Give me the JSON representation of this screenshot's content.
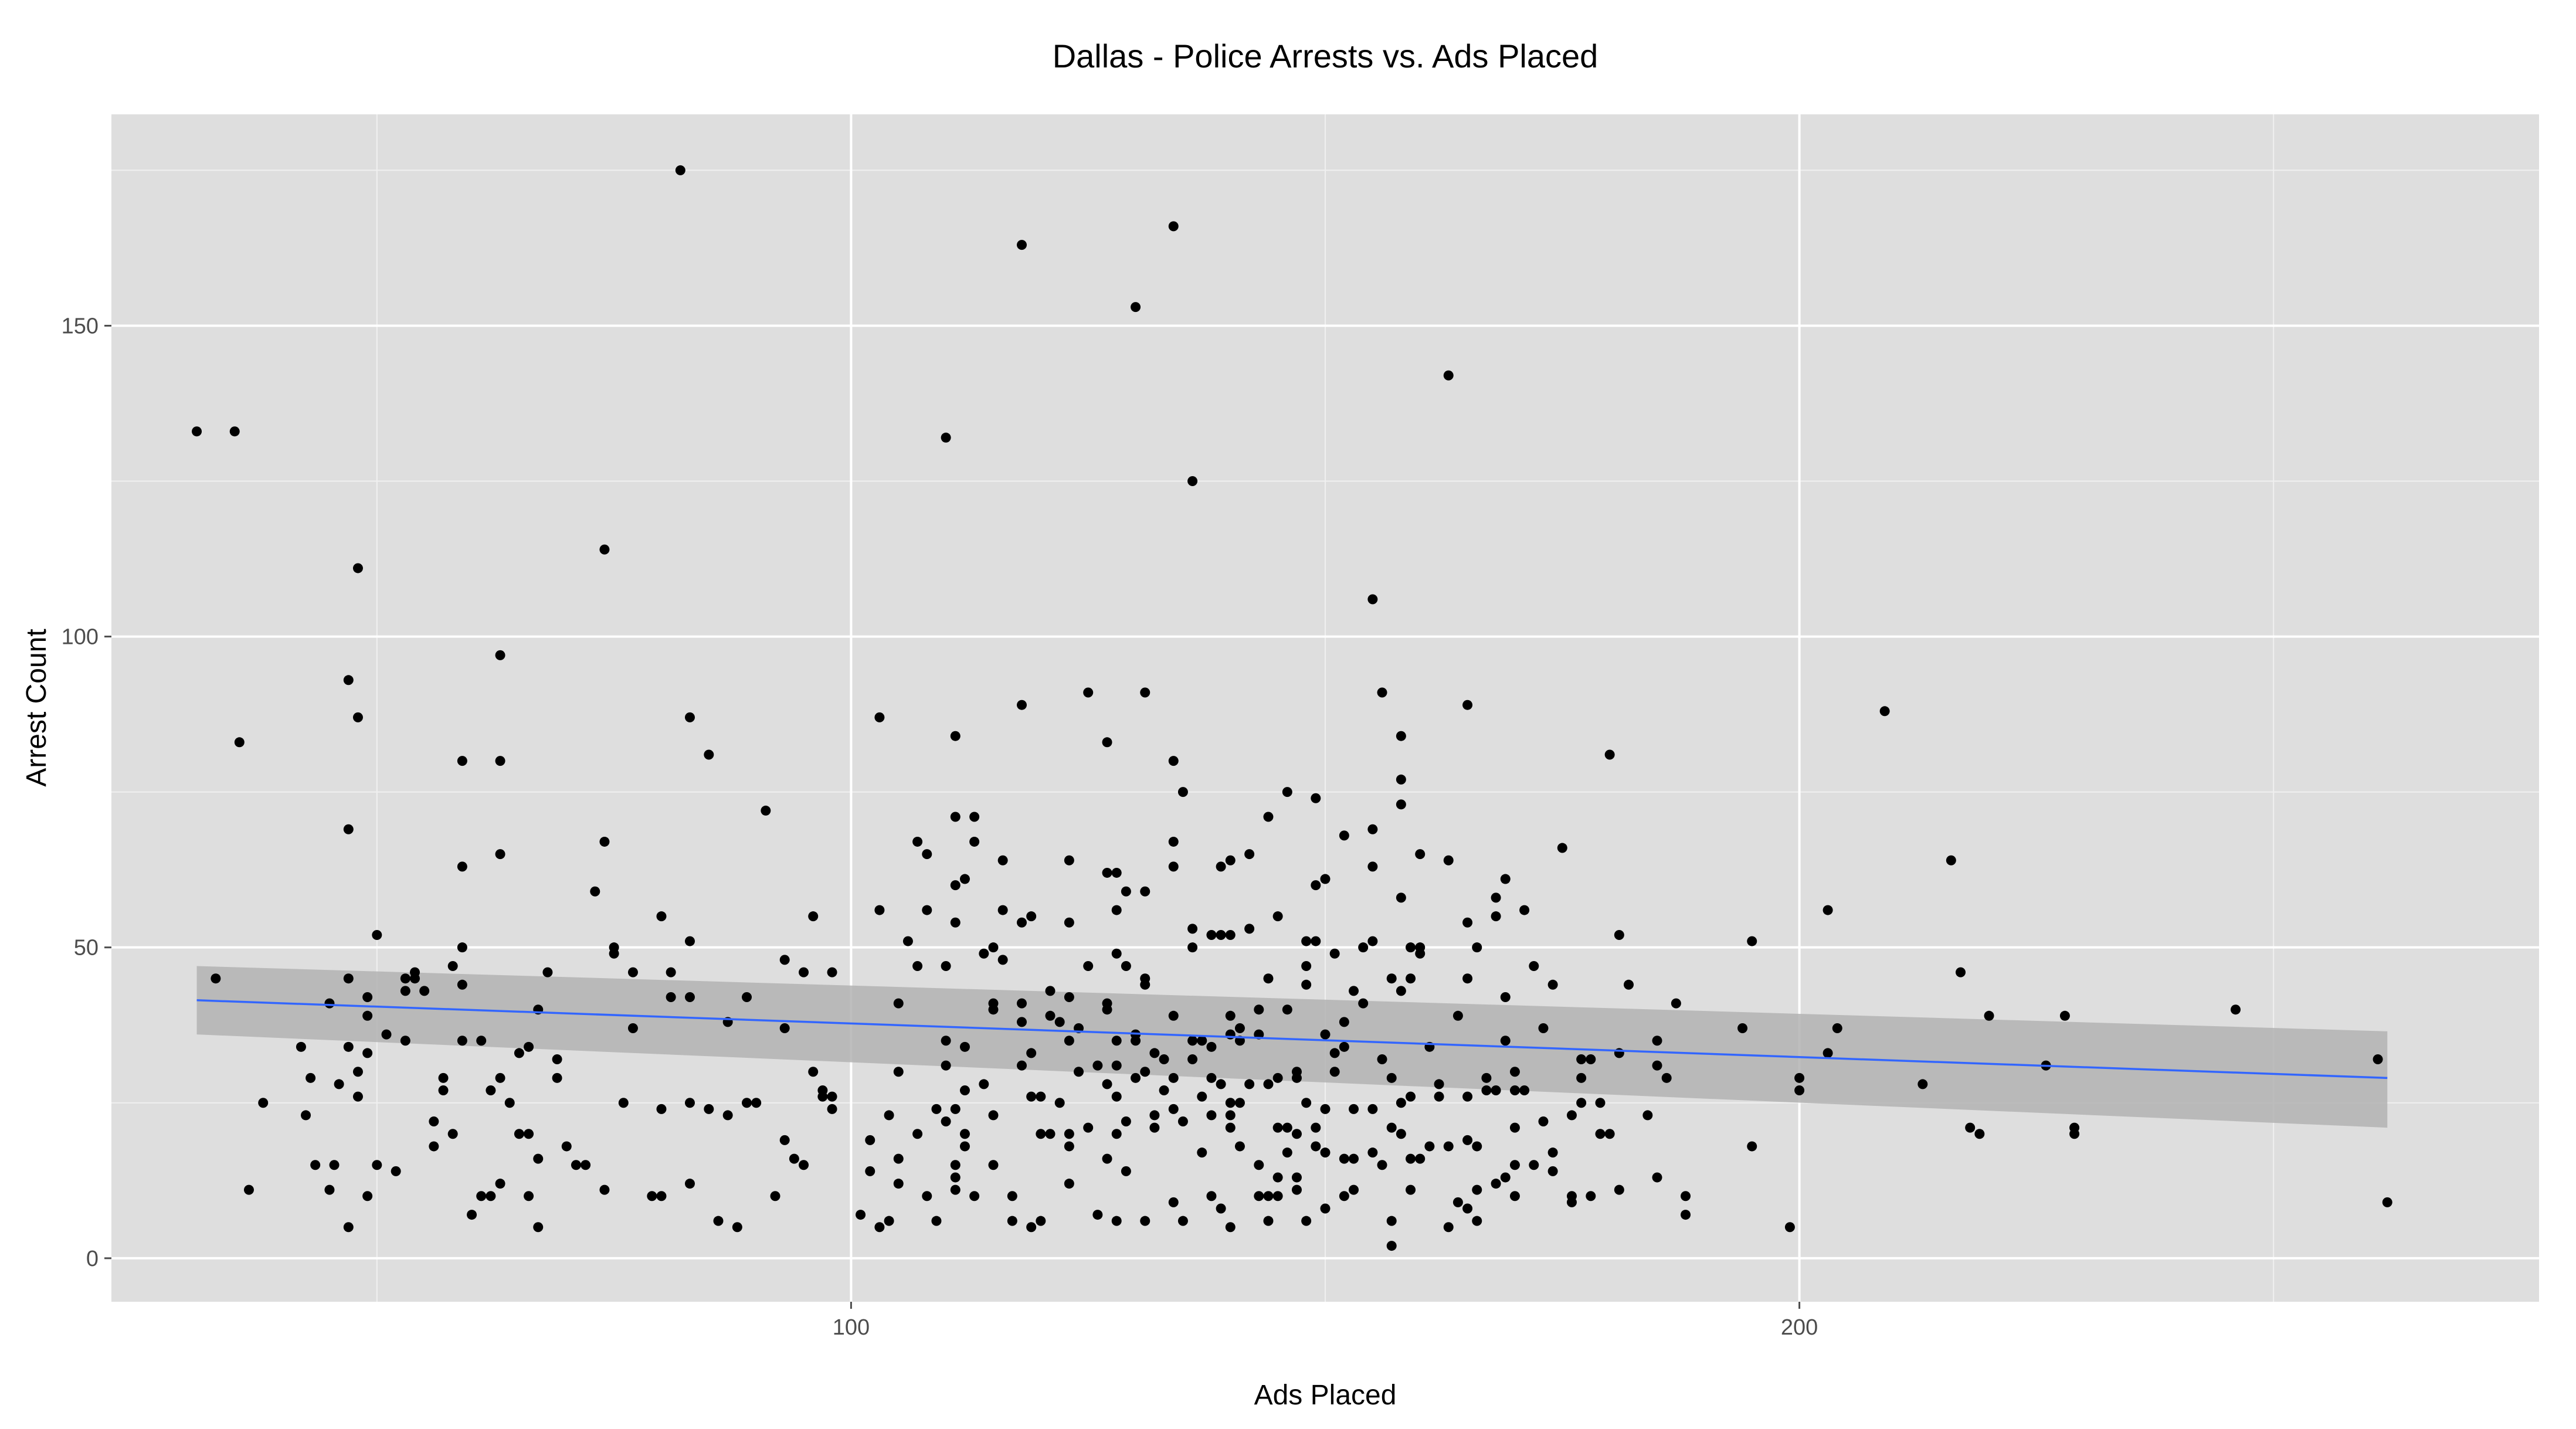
{
  "chart_data": {
    "type": "scatter",
    "title": "Dallas - Police Arrests vs. Ads Placed",
    "xlabel": "Ads Placed",
    "ylabel": "Arrest Count",
    "xlim": [
      22,
      278
    ],
    "ylim": [
      -7,
      184
    ],
    "x_ticks": [
      100,
      200
    ],
    "x_minor_ticks": [
      50,
      150,
      250
    ],
    "y_ticks": [
      0,
      50,
      100,
      150
    ],
    "y_minor_ticks": [
      25,
      75,
      125,
      175
    ],
    "grid": true,
    "legend": "none",
    "colors": {
      "panel": "#dedede",
      "grid_major": "#ffffff",
      "point": "#000000",
      "trend_line": "#3366ff",
      "confidence_band": "#b3b3b3"
    },
    "trend": {
      "x": [
        31,
        262
      ],
      "y": [
        41.5,
        29
      ],
      "band_lower": [
        36,
        21
      ],
      "band_upper": [
        47,
        36.5
      ]
    },
    "points": [
      [
        31,
        133
      ],
      [
        33,
        45
      ],
      [
        35,
        133
      ],
      [
        35.5,
        83
      ],
      [
        36.5,
        11
      ],
      [
        38,
        25
      ],
      [
        42,
        34
      ],
      [
        42.5,
        23
      ],
      [
        43,
        29
      ],
      [
        43.5,
        15
      ],
      [
        45,
        41
      ],
      [
        45.5,
        15
      ],
      [
        45,
        11
      ],
      [
        46,
        28
      ],
      [
        47,
        45
      ],
      [
        47,
        34
      ],
      [
        47,
        69
      ],
      [
        47,
        93
      ],
      [
        47,
        5
      ],
      [
        48,
        87
      ],
      [
        48,
        111
      ],
      [
        48,
        26
      ],
      [
        48,
        30
      ],
      [
        49,
        10
      ],
      [
        49,
        39
      ],
      [
        49,
        33
      ],
      [
        49,
        42
      ],
      [
        50,
        52
      ],
      [
        50,
        15
      ],
      [
        51,
        36
      ],
      [
        52,
        14
      ],
      [
        53,
        35
      ],
      [
        53,
        45
      ],
      [
        53,
        43
      ],
      [
        54,
        45
      ],
      [
        54,
        46
      ],
      [
        55,
        43
      ],
      [
        56,
        22
      ],
      [
        56,
        18
      ],
      [
        57,
        27
      ],
      [
        57,
        29
      ],
      [
        58,
        20
      ],
      [
        58,
        47
      ],
      [
        59,
        35
      ],
      [
        59,
        44
      ],
      [
        59,
        50
      ],
      [
        59,
        80
      ],
      [
        59,
        63
      ],
      [
        60,
        7
      ],
      [
        61,
        35
      ],
      [
        61,
        10
      ],
      [
        62,
        10
      ],
      [
        62,
        27
      ],
      [
        63,
        97
      ],
      [
        63,
        80
      ],
      [
        63,
        65
      ],
      [
        63,
        12
      ],
      [
        63,
        29
      ],
      [
        64,
        25
      ],
      [
        65,
        33
      ],
      [
        65,
        20
      ],
      [
        66,
        34
      ],
      [
        66,
        10
      ],
      [
        66,
        20
      ],
      [
        67,
        5
      ],
      [
        67,
        16
      ],
      [
        67,
        40
      ],
      [
        68,
        46
      ],
      [
        69,
        32
      ],
      [
        69,
        29
      ],
      [
        70,
        18
      ],
      [
        71,
        15
      ],
      [
        72,
        15
      ],
      [
        73,
        59
      ],
      [
        74,
        114
      ],
      [
        74,
        67
      ],
      [
        74,
        11
      ],
      [
        75,
        50
      ],
      [
        75,
        49
      ],
      [
        76,
        25
      ],
      [
        77,
        46
      ],
      [
        77,
        37
      ],
      [
        79,
        10
      ],
      [
        80,
        10
      ],
      [
        80,
        55
      ],
      [
        80,
        24
      ],
      [
        81,
        42
      ],
      [
        81,
        46
      ],
      [
        82,
        175
      ],
      [
        83,
        87
      ],
      [
        83,
        51
      ],
      [
        83,
        42
      ],
      [
        83,
        25
      ],
      [
        83,
        12
      ],
      [
        85,
        81
      ],
      [
        85,
        24
      ],
      [
        86,
        6
      ],
      [
        87,
        23
      ],
      [
        87,
        38
      ],
      [
        88,
        5
      ],
      [
        89,
        42
      ],
      [
        89,
        25
      ],
      [
        90,
        25
      ],
      [
        91,
        72
      ],
      [
        92,
        10
      ],
      [
        93,
        48
      ],
      [
        93,
        37
      ],
      [
        93,
        19
      ],
      [
        94,
        16
      ],
      [
        95,
        46
      ],
      [
        95,
        15
      ],
      [
        96,
        30
      ],
      [
        96,
        55
      ],
      [
        97,
        27
      ],
      [
        97,
        26
      ],
      [
        98,
        46
      ],
      [
        98,
        26
      ],
      [
        98,
        24
      ],
      [
        101,
        7
      ],
      [
        102,
        19
      ],
      [
        102,
        14
      ],
      [
        103,
        56
      ],
      [
        103,
        87
      ],
      [
        103,
        5
      ],
      [
        104,
        6
      ],
      [
        104,
        23
      ],
      [
        105,
        41
      ],
      [
        105,
        30
      ],
      [
        105,
        16
      ],
      [
        105,
        12
      ],
      [
        106,
        51
      ],
      [
        107,
        47
      ],
      [
        107,
        20
      ],
      [
        107,
        67
      ],
      [
        108,
        65
      ],
      [
        108,
        56
      ],
      [
        108,
        10
      ],
      [
        109,
        6
      ],
      [
        109,
        24
      ],
      [
        110,
        35
      ],
      [
        110,
        47
      ],
      [
        110,
        31
      ],
      [
        110,
        22
      ],
      [
        110,
        132
      ],
      [
        111,
        84
      ],
      [
        111,
        71
      ],
      [
        111,
        60
      ],
      [
        111,
        54
      ],
      [
        111,
        15
      ],
      [
        111,
        13
      ],
      [
        111,
        11
      ],
      [
        111,
        24
      ],
      [
        112,
        61
      ],
      [
        112,
        34
      ],
      [
        112,
        27
      ],
      [
        112,
        20
      ],
      [
        112,
        18
      ],
      [
        113,
        71
      ],
      [
        113,
        67
      ],
      [
        113,
        10
      ],
      [
        114,
        49
      ],
      [
        114,
        28
      ],
      [
        115,
        50
      ],
      [
        115,
        41
      ],
      [
        115,
        40
      ],
      [
        115,
        15
      ],
      [
        115,
        23
      ],
      [
        116,
        64
      ],
      [
        116,
        48
      ],
      [
        116,
        56
      ],
      [
        117,
        10
      ],
      [
        117,
        6
      ],
      [
        118,
        54
      ],
      [
        118,
        163
      ],
      [
        118,
        89
      ],
      [
        118,
        41
      ],
      [
        118,
        38
      ],
      [
        118,
        31
      ],
      [
        119,
        55
      ],
      [
        119,
        33
      ],
      [
        119,
        26
      ],
      [
        119,
        5
      ],
      [
        120,
        26
      ],
      [
        120,
        20
      ],
      [
        120,
        6
      ],
      [
        121,
        43
      ],
      [
        121,
        39
      ],
      [
        121,
        20
      ],
      [
        122,
        25
      ],
      [
        122,
        38
      ],
      [
        123,
        54
      ],
      [
        123,
        64
      ],
      [
        123,
        42
      ],
      [
        123,
        35
      ],
      [
        123,
        20
      ],
      [
        123,
        12
      ],
      [
        123,
        18
      ],
      [
        124,
        37
      ],
      [
        124,
        30
      ],
      [
        125,
        91
      ],
      [
        125,
        47
      ],
      [
        125,
        21
      ],
      [
        126,
        7
      ],
      [
        126,
        31
      ],
      [
        127,
        83
      ],
      [
        127,
        62
      ],
      [
        127,
        41
      ],
      [
        127,
        40
      ],
      [
        127,
        28
      ],
      [
        127,
        16
      ],
      [
        128,
        62
      ],
      [
        128,
        56
      ],
      [
        128,
        49
      ],
      [
        128,
        35
      ],
      [
        128,
        31
      ],
      [
        128,
        26
      ],
      [
        128,
        20
      ],
      [
        128,
        6
      ],
      [
        129,
        59
      ],
      [
        129,
        47
      ],
      [
        129,
        22
      ],
      [
        129,
        14
      ],
      [
        130,
        153
      ],
      [
        130,
        36
      ],
      [
        130,
        35
      ],
      [
        130,
        29
      ],
      [
        131,
        91
      ],
      [
        131,
        59
      ],
      [
        131,
        45
      ],
      [
        131,
        30
      ],
      [
        131,
        6
      ],
      [
        131,
        44
      ],
      [
        132,
        33
      ],
      [
        132,
        23
      ],
      [
        132,
        21
      ],
      [
        133,
        32
      ],
      [
        133,
        27
      ],
      [
        134,
        166
      ],
      [
        134,
        80
      ],
      [
        134,
        67
      ],
      [
        134,
        63
      ],
      [
        134,
        39
      ],
      [
        134,
        29
      ],
      [
        134,
        24
      ],
      [
        134,
        9
      ],
      [
        135,
        75
      ],
      [
        135,
        22
      ],
      [
        135,
        6
      ],
      [
        136,
        125
      ],
      [
        136,
        53
      ],
      [
        136,
        50
      ],
      [
        136,
        35
      ],
      [
        136,
        32
      ],
      [
        137,
        35
      ],
      [
        137,
        26
      ],
      [
        137,
        17
      ],
      [
        138,
        52
      ],
      [
        138,
        34
      ],
      [
        138,
        29
      ],
      [
        138,
        23
      ],
      [
        138,
        10
      ],
      [
        139,
        63
      ],
      [
        139,
        52
      ],
      [
        139,
        28
      ],
      [
        139,
        8
      ],
      [
        140,
        64
      ],
      [
        140,
        52
      ],
      [
        140,
        39
      ],
      [
        140,
        36
      ],
      [
        140,
        25
      ],
      [
        140,
        23
      ],
      [
        140,
        21
      ],
      [
        140,
        5
      ],
      [
        141,
        37
      ],
      [
        141,
        35
      ],
      [
        141,
        25
      ],
      [
        141,
        18
      ],
      [
        142,
        65
      ],
      [
        142,
        53
      ],
      [
        142,
        28
      ],
      [
        143,
        40
      ],
      [
        143,
        36
      ],
      [
        143,
        10
      ],
      [
        143,
        15
      ],
      [
        144,
        71
      ],
      [
        144,
        45
      ],
      [
        144,
        28
      ],
      [
        144,
        10
      ],
      [
        144,
        6
      ],
      [
        145,
        55
      ],
      [
        145,
        29
      ],
      [
        145,
        21
      ],
      [
        145,
        10
      ],
      [
        145,
        13
      ],
      [
        146,
        75
      ],
      [
        146,
        40
      ],
      [
        146,
        21
      ],
      [
        146,
        17
      ],
      [
        147,
        30
      ],
      [
        147,
        29
      ],
      [
        147,
        20
      ],
      [
        147,
        13
      ],
      [
        147,
        11
      ],
      [
        148,
        51
      ],
      [
        148,
        47
      ],
      [
        148,
        44
      ],
      [
        148,
        25
      ],
      [
        148,
        6
      ],
      [
        149,
        74
      ],
      [
        149,
        60
      ],
      [
        149,
        51
      ],
      [
        149,
        21
      ],
      [
        149,
        18
      ],
      [
        150,
        61
      ],
      [
        150,
        36
      ],
      [
        150,
        24
      ],
      [
        150,
        8
      ],
      [
        150,
        17
      ],
      [
        151,
        49
      ],
      [
        151,
        33
      ],
      [
        151,
        30
      ],
      [
        152,
        68
      ],
      [
        152,
        38
      ],
      [
        152,
        34
      ],
      [
        152,
        16
      ],
      [
        152,
        10
      ],
      [
        153,
        24
      ],
      [
        153,
        16
      ],
      [
        153,
        11
      ],
      [
        153,
        43
      ],
      [
        154,
        50
      ],
      [
        154,
        41
      ],
      [
        155,
        69
      ],
      [
        155,
        106
      ],
      [
        155,
        63
      ],
      [
        155,
        51
      ],
      [
        155,
        17
      ],
      [
        155,
        24
      ],
      [
        156,
        91
      ],
      [
        156,
        32
      ],
      [
        156,
        15
      ],
      [
        157,
        45
      ],
      [
        157,
        29
      ],
      [
        157,
        21
      ],
      [
        157,
        2
      ],
      [
        157,
        6
      ],
      [
        158,
        84
      ],
      [
        158,
        77
      ],
      [
        158,
        73
      ],
      [
        158,
        58
      ],
      [
        158,
        43
      ],
      [
        158,
        25
      ],
      [
        158,
        20
      ],
      [
        159,
        50
      ],
      [
        159,
        45
      ],
      [
        159,
        16
      ],
      [
        159,
        11
      ],
      [
        159,
        26
      ],
      [
        160,
        65
      ],
      [
        160,
        50
      ],
      [
        160,
        49
      ],
      [
        160,
        16
      ],
      [
        161,
        34
      ],
      [
        161,
        18
      ],
      [
        162,
        28
      ],
      [
        162,
        26
      ],
      [
        163,
        142
      ],
      [
        163,
        64
      ],
      [
        163,
        18
      ],
      [
        163,
        5
      ],
      [
        164,
        39
      ],
      [
        164,
        9
      ],
      [
        165,
        89
      ],
      [
        165,
        54
      ],
      [
        165,
        45
      ],
      [
        165,
        26
      ],
      [
        165,
        19
      ],
      [
        165,
        8
      ],
      [
        166,
        50
      ],
      [
        166,
        18
      ],
      [
        166,
        11
      ],
      [
        166,
        6
      ],
      [
        167,
        29
      ],
      [
        167,
        27
      ],
      [
        168,
        58
      ],
      [
        168,
        55
      ],
      [
        168,
        27
      ],
      [
        168,
        12
      ],
      [
        169,
        61
      ],
      [
        169,
        42
      ],
      [
        169,
        35
      ],
      [
        169,
        13
      ],
      [
        170,
        30
      ],
      [
        170,
        27
      ],
      [
        170,
        21
      ],
      [
        170,
        15
      ],
      [
        170,
        10
      ],
      [
        171,
        56
      ],
      [
        171,
        27
      ],
      [
        172,
        47
      ],
      [
        172,
        15
      ],
      [
        173,
        37
      ],
      [
        173,
        22
      ],
      [
        174,
        44
      ],
      [
        174,
        17
      ],
      [
        174,
        14
      ],
      [
        175,
        66
      ],
      [
        176,
        10
      ],
      [
        176,
        9
      ],
      [
        176,
        23
      ],
      [
        177,
        32
      ],
      [
        177,
        29
      ],
      [
        177,
        25
      ],
      [
        178,
        32
      ],
      [
        178,
        10
      ],
      [
        179,
        25
      ],
      [
        179,
        20
      ],
      [
        180,
        81
      ],
      [
        180,
        20
      ],
      [
        181,
        52
      ],
      [
        181,
        33
      ],
      [
        181,
        11
      ],
      [
        182,
        44
      ],
      [
        184,
        23
      ],
      [
        185,
        35
      ],
      [
        185,
        31
      ],
      [
        185,
        13
      ],
      [
        186,
        29
      ],
      [
        187,
        41
      ],
      [
        188,
        10
      ],
      [
        188,
        7
      ],
      [
        194,
        37
      ],
      [
        195,
        51
      ],
      [
        195,
        18
      ],
      [
        199,
        5
      ],
      [
        200,
        29
      ],
      [
        200,
        27
      ],
      [
        203,
        56
      ],
      [
        203,
        33
      ],
      [
        204,
        37
      ],
      [
        209,
        88
      ],
      [
        213,
        28
      ],
      [
        216,
        64
      ],
      [
        217,
        46
      ],
      [
        218,
        21
      ],
      [
        219,
        20
      ],
      [
        220,
        39
      ],
      [
        226,
        31
      ],
      [
        228,
        39
      ],
      [
        229,
        21
      ],
      [
        229,
        20
      ],
      [
        246,
        40
      ],
      [
        261,
        32
      ],
      [
        262,
        9
      ]
    ]
  }
}
